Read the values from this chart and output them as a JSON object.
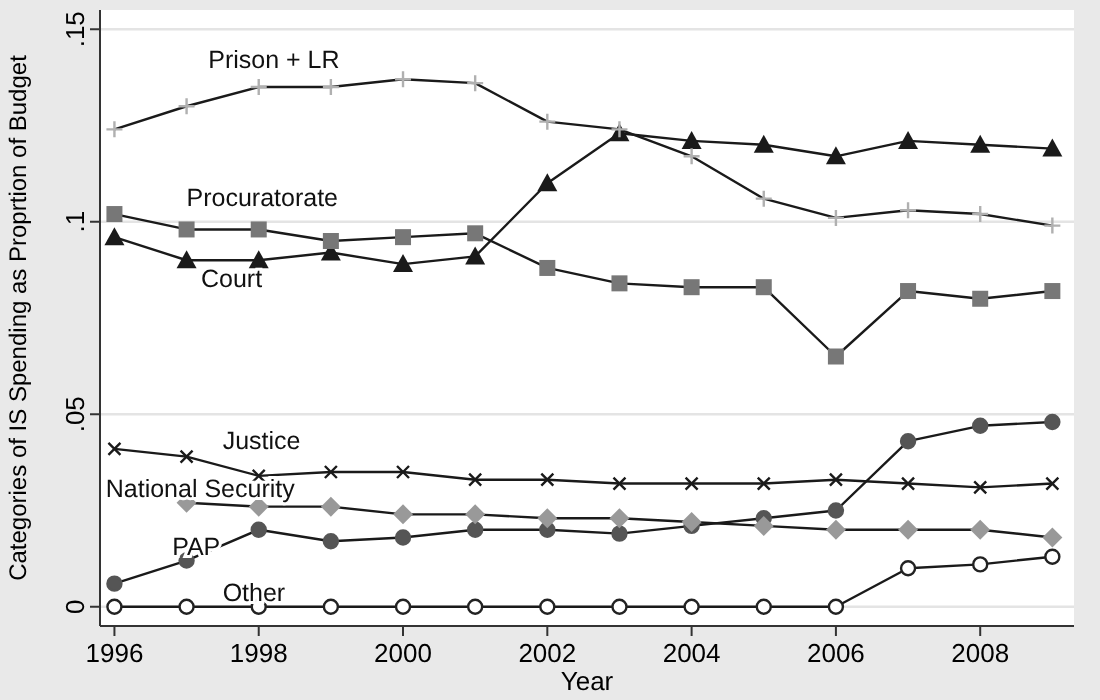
{
  "chart_data": {
    "type": "line",
    "xlabel": "Year",
    "ylabel": "Categories of IS Spending as Proprtion of Budget",
    "x": [
      1996,
      1997,
      1998,
      1999,
      2000,
      2001,
      2002,
      2003,
      2004,
      2005,
      2006,
      2007,
      2008,
      2009
    ],
    "xlim": [
      1995.8,
      2009.3
    ],
    "xticks": [
      1996,
      1998,
      2000,
      2002,
      2004,
      2006,
      2008
    ],
    "ylim": [
      -0.005,
      0.155
    ],
    "yticks": [
      {
        "value": 0,
        "label": "0"
      },
      {
        "value": 0.05,
        "label": ".05"
      },
      {
        "value": 0.1,
        "label": ".1"
      },
      {
        "value": 0.15,
        "label": ".15"
      }
    ],
    "grid": "y",
    "legend": false,
    "series": [
      {
        "name": "Prison + LR",
        "color": "#b0b0b0",
        "marker": "plus",
        "values": [
          0.124,
          0.13,
          0.135,
          0.135,
          0.137,
          0.136,
          0.126,
          0.124,
          0.117,
          0.106,
          0.101,
          0.103,
          0.102,
          0.099
        ]
      },
      {
        "name": "Procuratorate",
        "color": "#777777",
        "marker": "square",
        "values": [
          0.102,
          0.098,
          0.098,
          0.095,
          0.096,
          0.097,
          0.088,
          0.084,
          0.083,
          0.083,
          0.065,
          0.082,
          0.08,
          0.082
        ]
      },
      {
        "name": "Court",
        "color": "#1a1a1a",
        "marker": "triangle",
        "values": [
          0.096,
          0.09,
          0.09,
          0.092,
          0.089,
          0.091,
          0.11,
          0.123,
          0.121,
          0.12,
          0.117,
          0.121,
          0.12,
          0.119
        ]
      },
      {
        "name": "Justice",
        "color": "#1a1a1a",
        "marker": "cross",
        "values": [
          0.041,
          0.039,
          0.034,
          0.035,
          0.035,
          0.033,
          0.033,
          0.032,
          0.032,
          0.032,
          0.033,
          0.032,
          0.031,
          0.032
        ]
      },
      {
        "name": "National Security",
        "color": "#999999",
        "marker": "diamond",
        "values": [
          null,
          0.027,
          0.026,
          0.026,
          0.024,
          0.024,
          0.023,
          0.023,
          0.022,
          0.021,
          0.02,
          0.02,
          0.02,
          0.018
        ]
      },
      {
        "name": "PAP",
        "color": "#555555",
        "marker": "circle",
        "values": [
          0.006,
          0.012,
          0.02,
          0.017,
          0.018,
          0.02,
          0.02,
          0.019,
          0.021,
          0.023,
          0.025,
          0.043,
          0.047,
          0.048
        ]
      },
      {
        "name": "Other",
        "color": "#ffffff",
        "marker": "circle",
        "values": [
          0,
          0,
          0,
          0,
          0,
          0,
          0,
          0,
          0,
          0,
          0,
          0.01,
          0.011,
          0.013
        ]
      }
    ]
  }
}
